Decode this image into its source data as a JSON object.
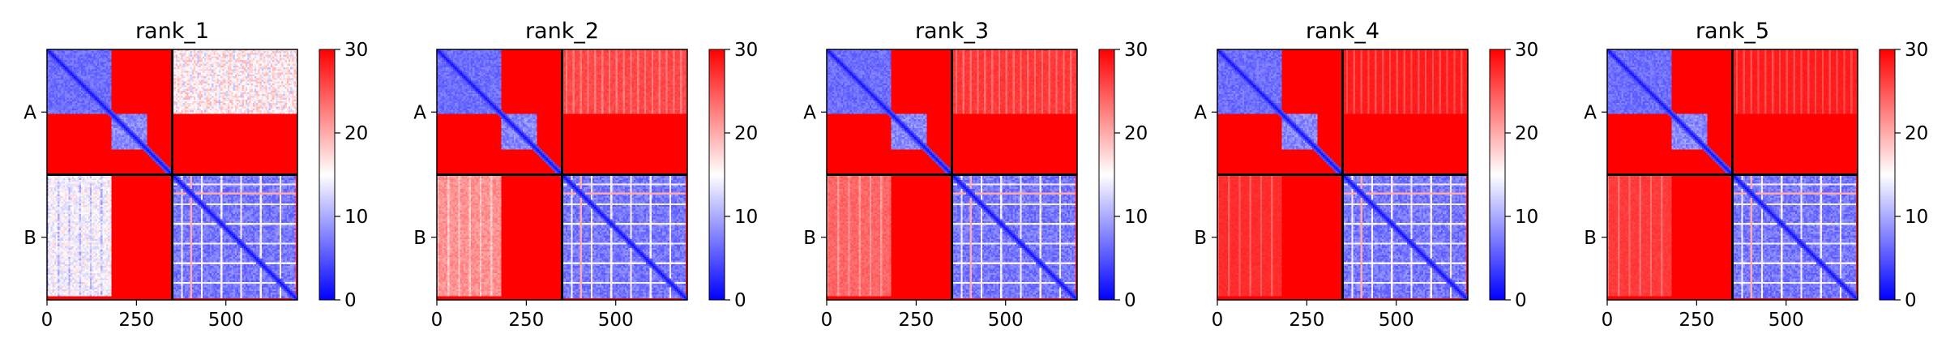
{
  "chart_data": [
    {
      "type": "heatmap",
      "title": "rank_1",
      "xticks": [
        "0",
        "250",
        "500"
      ],
      "xtick_values": [
        0,
        250,
        500
      ],
      "xlim": [
        0,
        700
      ],
      "chain_labels": [
        "A",
        "B"
      ],
      "chain_boundary": 350,
      "colorbar": {
        "ticks": [
          "0",
          "10",
          "20",
          "30"
        ],
        "min": 0,
        "max": 30,
        "colors": [
          "#0000ff",
          "#ffffff",
          "#ff0000"
        ]
      },
      "block_mean_error": {
        "A-A": 5,
        "A-B": 14,
        "B-A": 12,
        "B-B": 5
      },
      "background_error": 30
    },
    {
      "type": "heatmap",
      "title": "rank_2",
      "xticks": [
        "0",
        "250",
        "500"
      ],
      "xtick_values": [
        0,
        250,
        500
      ],
      "xlim": [
        0,
        700
      ],
      "chain_labels": [
        "A",
        "B"
      ],
      "chain_boundary": 350,
      "colorbar": {
        "ticks": [
          "0",
          "10",
          "20",
          "30"
        ],
        "min": 0,
        "max": 30,
        "colors": [
          "#0000ff",
          "#ffffff",
          "#ff0000"
        ]
      },
      "block_mean_error": {
        "A-A": 5,
        "A-B": 25,
        "B-A": 20,
        "B-B": 5
      },
      "background_error": 30
    },
    {
      "type": "heatmap",
      "title": "rank_3",
      "xticks": [
        "0",
        "250",
        "500"
      ],
      "xtick_values": [
        0,
        250,
        500
      ],
      "xlim": [
        0,
        700
      ],
      "chain_labels": [
        "A",
        "B"
      ],
      "chain_boundary": 350,
      "colorbar": {
        "ticks": [
          "0",
          "10",
          "20",
          "30"
        ],
        "min": 0,
        "max": 30,
        "colors": [
          "#0000ff",
          "#ffffff",
          "#ff0000"
        ]
      },
      "block_mean_error": {
        "A-A": 5,
        "A-B": 26,
        "B-A": 23,
        "B-B": 5
      },
      "background_error": 30
    },
    {
      "type": "heatmap",
      "title": "rank_4",
      "xticks": [
        "0",
        "250",
        "500"
      ],
      "xtick_values": [
        0,
        250,
        500
      ],
      "xlim": [
        0,
        700
      ],
      "chain_labels": [
        "A",
        "B"
      ],
      "chain_boundary": 350,
      "colorbar": {
        "ticks": [
          "0",
          "10",
          "20",
          "30"
        ],
        "min": 0,
        "max": 30,
        "colors": [
          "#0000ff",
          "#ffffff",
          "#ff0000"
        ]
      },
      "block_mean_error": {
        "A-A": 5,
        "A-B": 28,
        "B-A": 27,
        "B-B": 5
      },
      "background_error": 30
    },
    {
      "type": "heatmap",
      "title": "rank_5",
      "xticks": [
        "0",
        "250",
        "500"
      ],
      "xtick_values": [
        0,
        250,
        500
      ],
      "xlim": [
        0,
        700
      ],
      "chain_labels": [
        "A",
        "B"
      ],
      "chain_boundary": 350,
      "colorbar": {
        "ticks": [
          "0",
          "10",
          "20",
          "30"
        ],
        "min": 0,
        "max": 30,
        "colors": [
          "#0000ff",
          "#ffffff",
          "#ff0000"
        ]
      },
      "block_mean_error": {
        "A-A": 5,
        "A-B": 28,
        "B-A": 26,
        "B-B": 5
      },
      "background_error": 30
    }
  ]
}
